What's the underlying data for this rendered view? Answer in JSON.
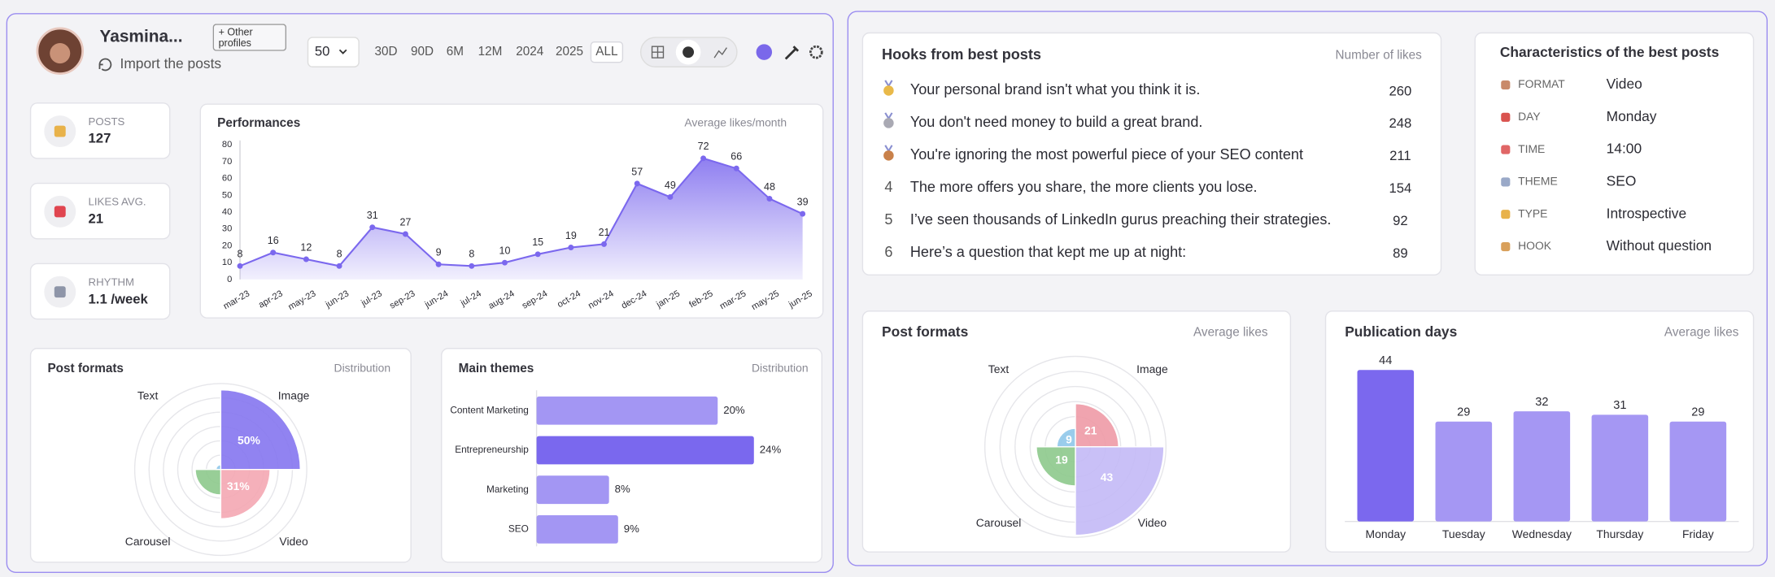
{
  "profile": {
    "name": "Yasmina...",
    "other_profiles": "+ Other profiles",
    "import": "Import the posts",
    "post_count": "50",
    "ranges": [
      "30D",
      "90D",
      "6M",
      "12M",
      "2024",
      "2025",
      "ALL"
    ],
    "active_range": 6
  },
  "stats": [
    {
      "label": "POSTS",
      "value": 127
    },
    {
      "label": "LIKES AVG.",
      "value": 21
    },
    {
      "label": "RHYTHM",
      "value": "1.1 /week"
    }
  ],
  "hooks": {
    "title": "Hooks from best posts",
    "column": "Number of likes",
    "rows": [
      {
        "medal": "#e9b949",
        "text": "Your personal brand isn't what you think it is.",
        "likes": 260
      },
      {
        "medal": "#a9a9b3",
        "text": "You don't need money to build a great brand.",
        "likes": 248
      },
      {
        "medal": "#c9814a",
        "text": "You're ignoring the most powerful piece of your SEO content",
        "likes": 211
      },
      {
        "rank": 4,
        "text": "The more offers you share, the more clients you lose.",
        "likes": 154
      },
      {
        "rank": 5,
        "text": "I’ve seen thousands of LinkedIn gurus preaching their strategies.",
        "likes": 92
      },
      {
        "rank": 6,
        "text": "Here’s a question that kept me up at night:",
        "likes": 89
      }
    ]
  },
  "characteristics": {
    "title": "Characteristics of the best posts",
    "rows": [
      {
        "label": "FORMAT",
        "value": "Video"
      },
      {
        "label": "DAY",
        "value": "Monday"
      },
      {
        "label": "TIME",
        "value": "14:00"
      },
      {
        "label": "THEME",
        "value": "SEO"
      },
      {
        "label": "TYPE",
        "value": "Introspective"
      },
      {
        "label": "HOOK",
        "value": "Without question"
      }
    ]
  },
  "chart_data": [
    {
      "type": "line",
      "title": "Performances",
      "subtitle": "Average likes/month",
      "categories": [
        "mar-23",
        "apr-23",
        "may-23",
        "jun-23",
        "jul-23",
        "sep-23",
        "jun-24",
        "jul-24",
        "aug-24",
        "sep-24",
        "oct-24",
        "nov-24",
        "dec-24",
        "jan-25",
        "feb-25",
        "mar-25",
        "may-25",
        "jun-25"
      ],
      "values": [
        8,
        16,
        12,
        8,
        31,
        27,
        9,
        8,
        10,
        15,
        19,
        21,
        57,
        49,
        72,
        66,
        48,
        39
      ],
      "color": "#7b68ee",
      "ylim": [
        0,
        80
      ],
      "yticks": [
        0,
        10,
        20,
        30,
        40,
        50,
        60,
        70,
        80
      ]
    },
    {
      "type": "polar",
      "title": "Post formats",
      "subtitle": "Distribution",
      "categories": [
        "Image",
        "Video",
        "Carousel",
        "Text"
      ],
      "values": [
        50,
        31,
        16,
        3
      ],
      "value_labels": [
        "50%",
        "31%",
        null,
        null
      ],
      "colors": [
        "#8576ef",
        "#f4a7b3",
        "#8dc98c",
        "#8fc8ea"
      ],
      "rlim": [
        0,
        54
      ]
    },
    {
      "type": "bar",
      "orientation": "horizontal",
      "title": "Main themes",
      "subtitle": "Distribution",
      "categories": [
        "Content Marketing",
        "Entrepreneurship",
        "Marketing",
        "SEO"
      ],
      "values": [
        20,
        24,
        8,
        9
      ],
      "value_labels": [
        "20%",
        "24%",
        "8%",
        "9%"
      ],
      "colors": [
        "#a396f3",
        "#7a68ee",
        "#a396f3",
        "#a396f3"
      ],
      "xlim": [
        0,
        24
      ]
    },
    {
      "type": "polar",
      "title": "Post formats",
      "subtitle": "Average likes",
      "categories": [
        "Image",
        "Video",
        "Carousel",
        "Text"
      ],
      "values": [
        21,
        43,
        19,
        9
      ],
      "colors": [
        "#ee9aa6",
        "#c3b9f6",
        "#8dc98c",
        "#8fc8ea"
      ],
      "rlim": [
        0,
        44
      ]
    },
    {
      "type": "bar",
      "title": "Publication days",
      "subtitle": "Average likes",
      "categories": [
        "Monday",
        "Tuesday",
        "Wednesday",
        "Thursday",
        "Friday"
      ],
      "values": [
        44,
        29,
        32,
        31,
        29
      ],
      "colors": [
        "#7b68ee",
        "#a597f3",
        "#a597f3",
        "#a597f3",
        "#a597f3"
      ],
      "ylim": [
        0,
        45
      ]
    }
  ]
}
